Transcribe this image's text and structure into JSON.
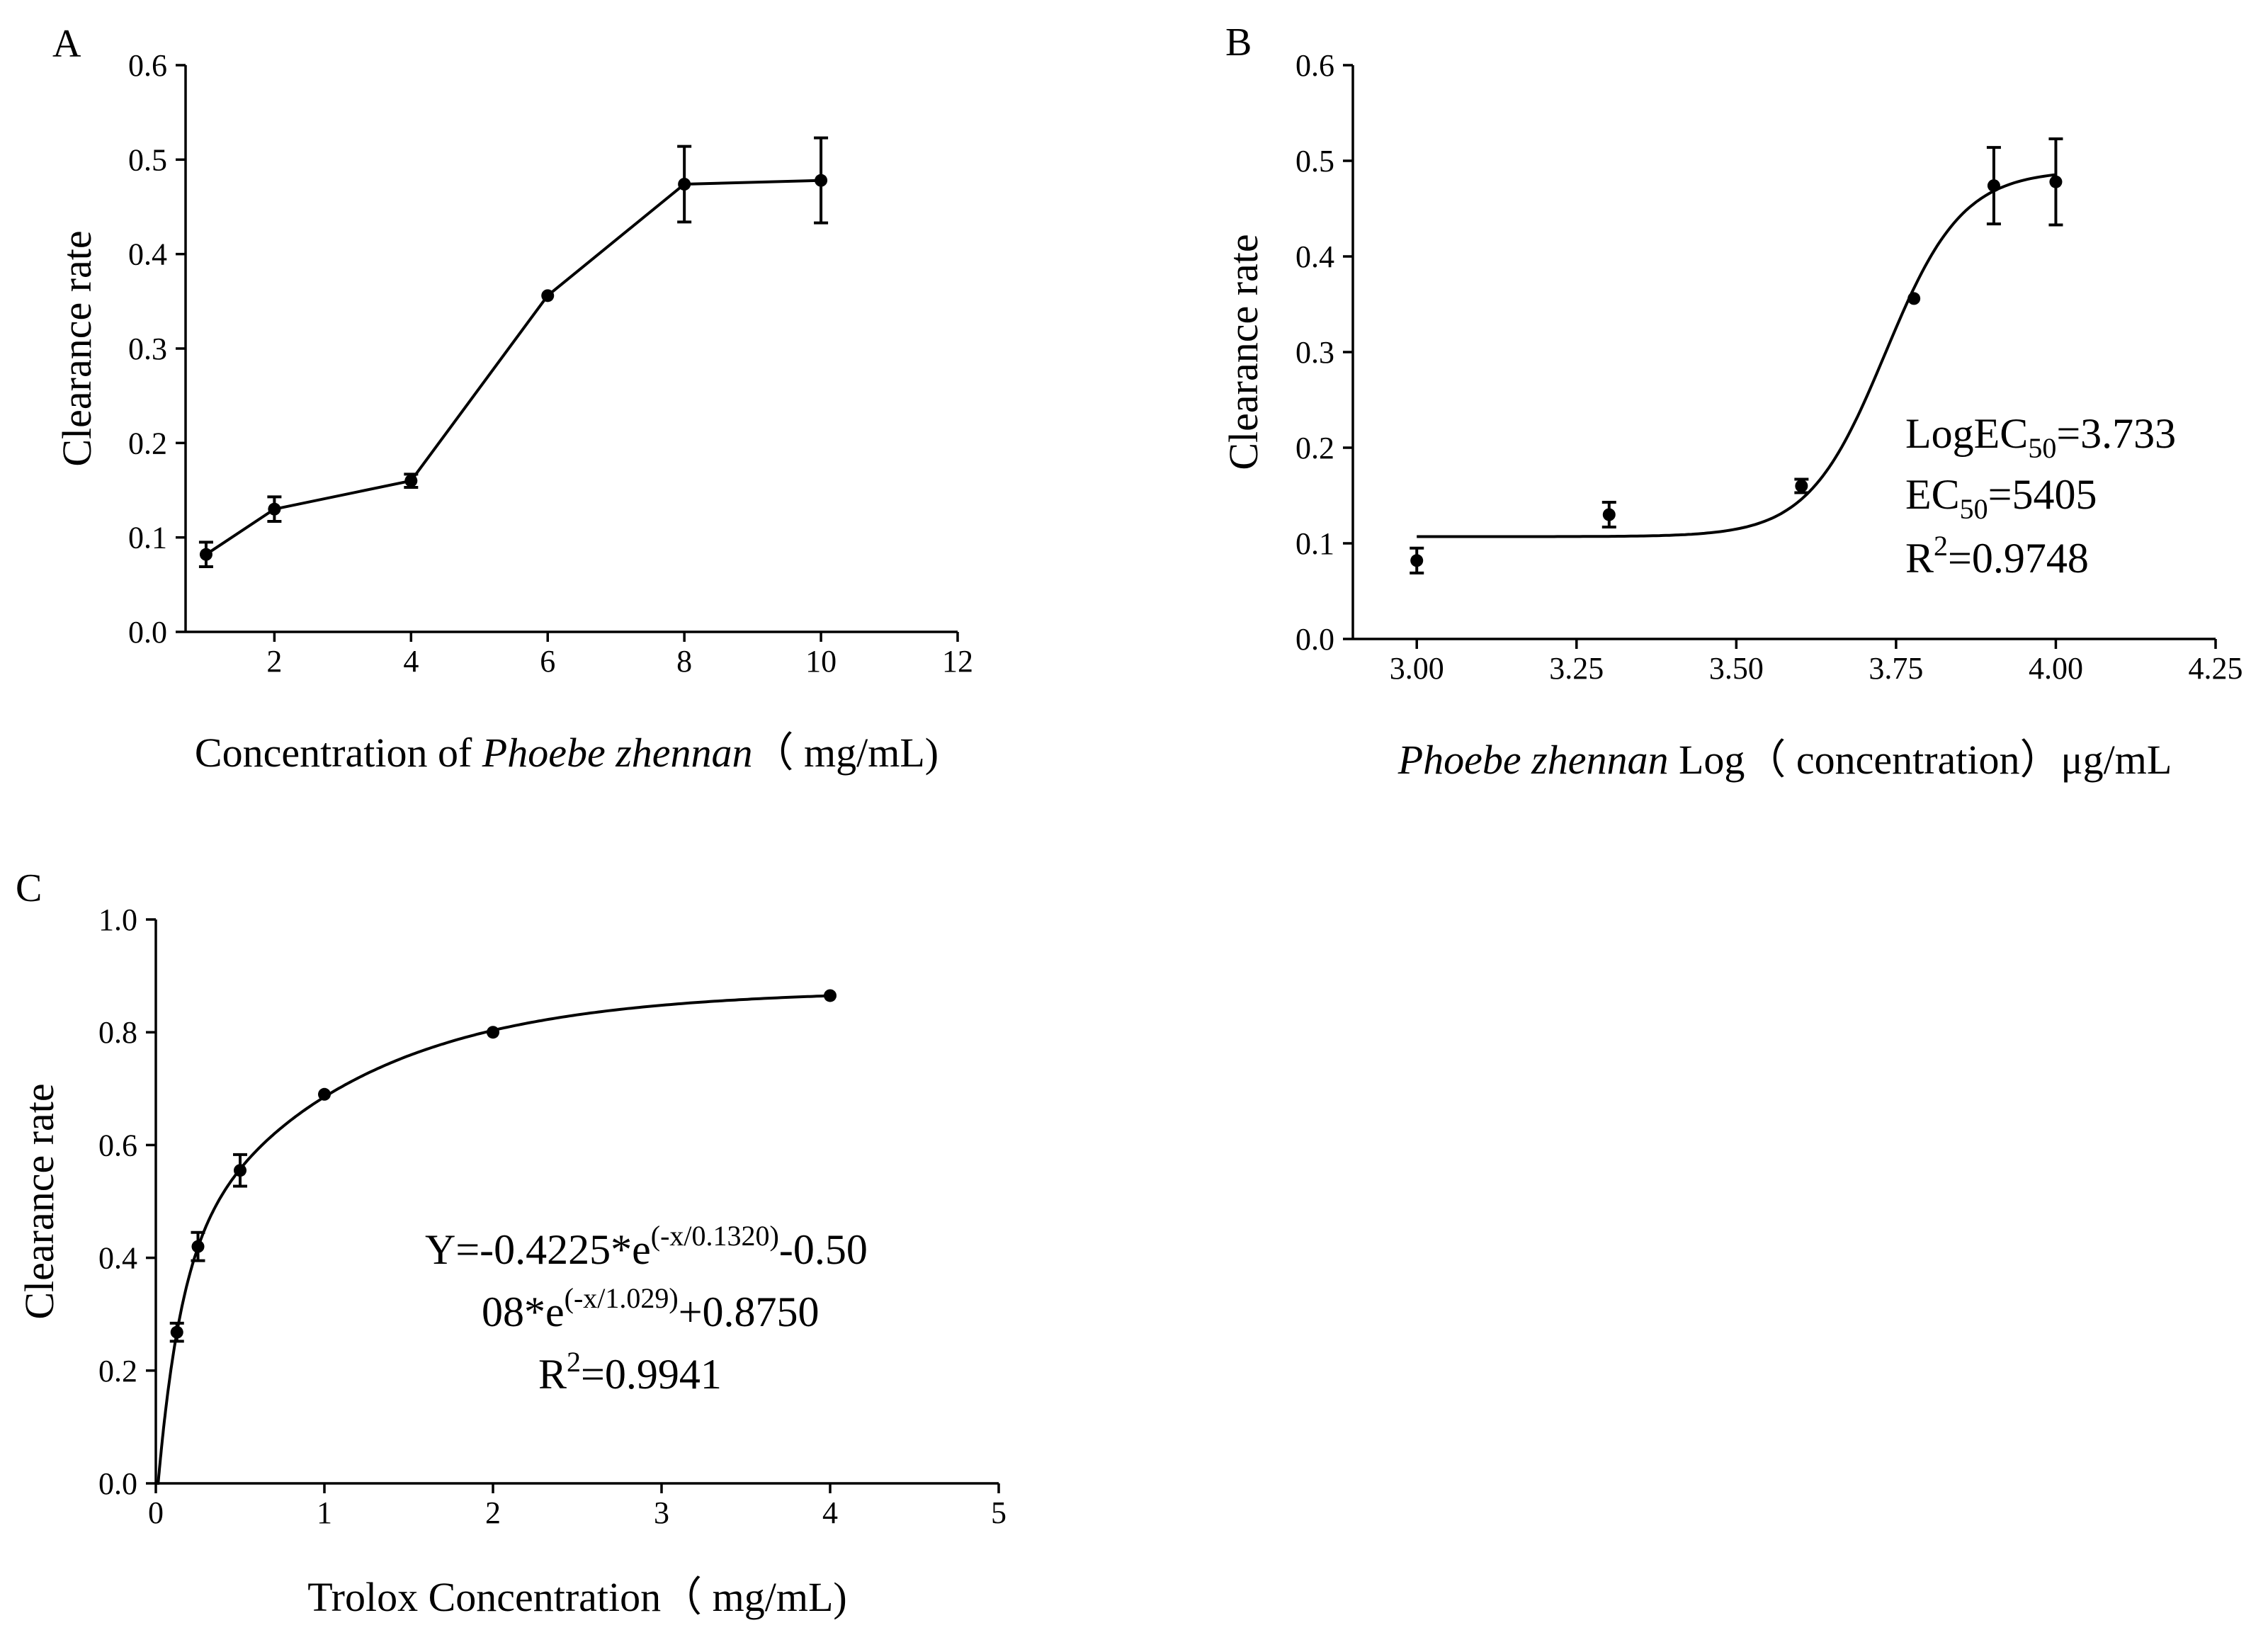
{
  "chart_data": [
    {
      "panel": "A",
      "type": "line",
      "xlabel_parts": [
        "Concentration of ",
        "Phoebe zhennan",
        "（ mg/mL)"
      ],
      "ylabel": "Clearance rate",
      "xlim": [
        0.7,
        12
      ],
      "ylim": [
        0,
        0.6
      ],
      "xticks": [
        "2",
        "4",
        "6",
        "8",
        "10",
        "12"
      ],
      "yticks": [
        "0.0",
        "0.1",
        "0.2",
        "0.3",
        "0.4",
        "0.5",
        "0.6"
      ],
      "x": [
        1,
        2,
        4,
        6,
        8,
        10
      ],
      "y": [
        0.082,
        0.13,
        0.16,
        0.356,
        0.474,
        0.478
      ],
      "err": [
        0.013,
        0.013,
        0.007,
        0.0,
        0.04,
        0.045
      ]
    },
    {
      "panel": "B",
      "type": "scatter",
      "xlabel_parts": [
        "Phoebe zhennan",
        " Log（ concentration）μg/mL"
      ],
      "ylabel": "Clearance rate",
      "xlim": [
        2.9,
        4.25
      ],
      "ylim": [
        0,
        0.6
      ],
      "xticks": [
        "3.00",
        "3.25",
        "3.50",
        "3.75",
        "4.00",
        "4.25"
      ],
      "yticks": [
        "0.0",
        "0.1",
        "0.2",
        "0.3",
        "0.4",
        "0.5",
        "0.6"
      ],
      "x": [
        3.0,
        3.301,
        3.602,
        3.778,
        3.903,
        4.0
      ],
      "y": [
        0.082,
        0.13,
        0.16,
        0.356,
        0.474,
        0.478
      ],
      "err": [
        0.013,
        0.013,
        0.007,
        0.0,
        0.04,
        0.045
      ],
      "fit": {
        "type": "sigmoid",
        "bottom": 0.107,
        "top": 0.49,
        "logEC50": 3.733,
        "slope": 7.2
      },
      "annotation": {
        "logec50": {
          "pre": "LogEC",
          "sub": "50",
          "post": "=3.733"
        },
        "ec50": {
          "pre": "EC",
          "sub": "50",
          "post": "=5405"
        },
        "r2": {
          "pre": "R",
          "sup": "2",
          "post": "=0.9748"
        }
      }
    },
    {
      "panel": "C",
      "type": "scatter",
      "xlabel": "Trolox Concentration（ mg/mL)",
      "ylabel": "Clearance rate",
      "xlim": [
        0,
        5
      ],
      "ylim": [
        0,
        1.0
      ],
      "xticks": [
        "0",
        "1",
        "2",
        "3",
        "4",
        "5"
      ],
      "yticks": [
        "0.0",
        "0.2",
        "0.4",
        "0.6",
        "0.8",
        "1.0"
      ],
      "x": [
        0.125,
        0.25,
        0.5,
        1,
        2,
        4
      ],
      "y": [
        0.268,
        0.42,
        0.555,
        0.69,
        0.8,
        0.865
      ],
      "err": [
        0.016,
        0.025,
        0.028,
        0.0,
        0.0,
        0.0
      ],
      "fit": {
        "type": "double-exp",
        "a1": -0.4225,
        "t1": 0.132,
        "a2": -0.5008,
        "t2": 1.029,
        "c": 0.875
      },
      "annotation": {
        "line1": {
          "pre": "Y=-0.4225*e",
          "sup": "(-x/0.1320)",
          "post": "-0.50"
        },
        "line2": {
          "pre": "08*e",
          "sup": "(-x/1.029)",
          "post": "+0.8750"
        },
        "r2": {
          "pre": "R",
          "sup": "2",
          "post": "=0.9941"
        }
      }
    }
  ]
}
